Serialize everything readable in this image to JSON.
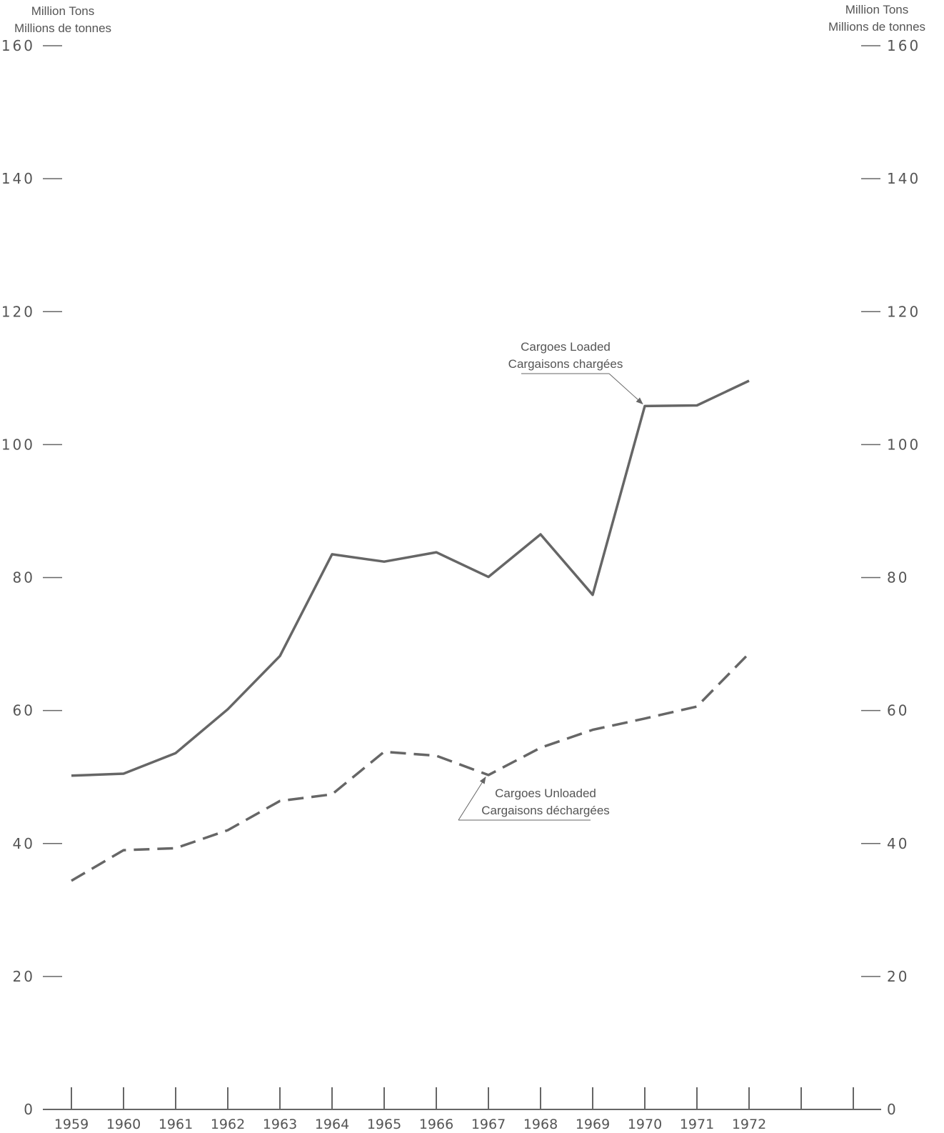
{
  "chart_data": {
    "type": "line",
    "axis_title_left": [
      "Million Tons",
      "Millions de tonnes"
    ],
    "axis_title_right": [
      "Million Tons",
      "Millions de tonnes"
    ],
    "y_ticks": [
      0,
      20,
      40,
      60,
      80,
      100,
      120,
      140,
      160
    ],
    "y_tick_labels": [
      "0",
      "20",
      "40",
      "60",
      "80",
      "100",
      "120",
      "140",
      "160"
    ],
    "y_tick_labels_right": [
      "0",
      "20",
      "40",
      "60",
      "80",
      "100",
      "120",
      "140",
      "160"
    ],
    "ylim": [
      0,
      160
    ],
    "x": [
      "1959",
      "1960",
      "1961",
      "1962",
      "1963",
      "1964",
      "1965",
      "1966",
      "1967",
      "1968",
      "1969",
      "1970",
      "1971",
      "1972"
    ],
    "x_slots": 16,
    "grid": false,
    "series": [
      {
        "name": "Cargoes Loaded / Cargaisons chargées",
        "style": "solid",
        "color": "#666666",
        "values": [
          50.2,
          50.5,
          53.6,
          60.2,
          68.2,
          83.5,
          82.4,
          83.8,
          80.1,
          86.5,
          77.4,
          105.8,
          105.9,
          109.6
        ]
      },
      {
        "name": "Cargoes Unloaded / Cargaisons déchargées",
        "style": "dashed",
        "color": "#666666",
        "values": [
          34.4,
          39.0,
          39.3,
          42.0,
          46.4,
          47.4,
          53.8,
          53.2,
          50.3,
          54.4,
          57.1,
          58.8,
          60.6,
          68.6
        ]
      }
    ],
    "annotations": [
      {
        "series": 0,
        "lines": [
          "Cargoes Loaded",
          "Cargaisons chargées"
        ],
        "points_to": "1970"
      },
      {
        "series": 1,
        "lines": [
          "Cargoes Unloaded",
          "Cargaisons déchargées"
        ],
        "points_to": "1967"
      }
    ]
  }
}
